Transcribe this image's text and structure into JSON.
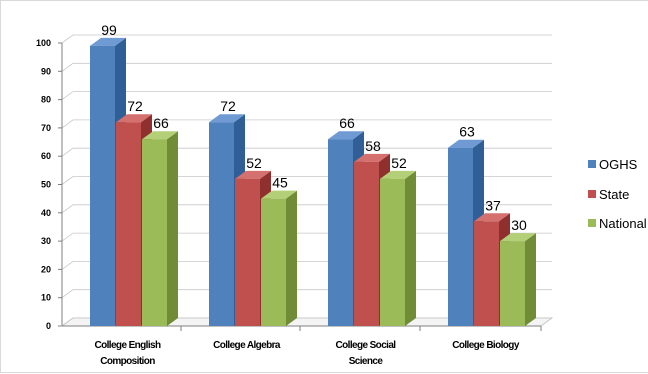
{
  "chart_data": {
    "type": "bar",
    "categories": [
      [
        "College English",
        "Composition"
      ],
      [
        "College Algebra"
      ],
      [
        "College Social",
        "Science"
      ],
      [
        "College Biology"
      ]
    ],
    "series": [
      {
        "name": "OGHS",
        "values": [
          99,
          72,
          66,
          63
        ]
      },
      {
        "name": "State",
        "values": [
          72,
          52,
          58,
          37
        ]
      },
      {
        "name": "National",
        "values": [
          66,
          45,
          52,
          30
        ]
      }
    ],
    "yticks": [
      0,
      10,
      20,
      30,
      40,
      50,
      60,
      70,
      80,
      90,
      100
    ],
    "ylim": [
      0,
      100
    ],
    "grid": true,
    "legend_position": "right",
    "title": "",
    "xlabel": "",
    "ylabel": "",
    "colors": {
      "OGHS": {
        "front": "#4f81bd",
        "top": "#6f9ad3",
        "side": "#2f5f96"
      },
      "State": {
        "front": "#c0504d",
        "top": "#d4706d",
        "side": "#8f302e"
      },
      "National": {
        "front": "#9bbb59",
        "top": "#b3cf78",
        "side": "#708c37"
      }
    }
  }
}
